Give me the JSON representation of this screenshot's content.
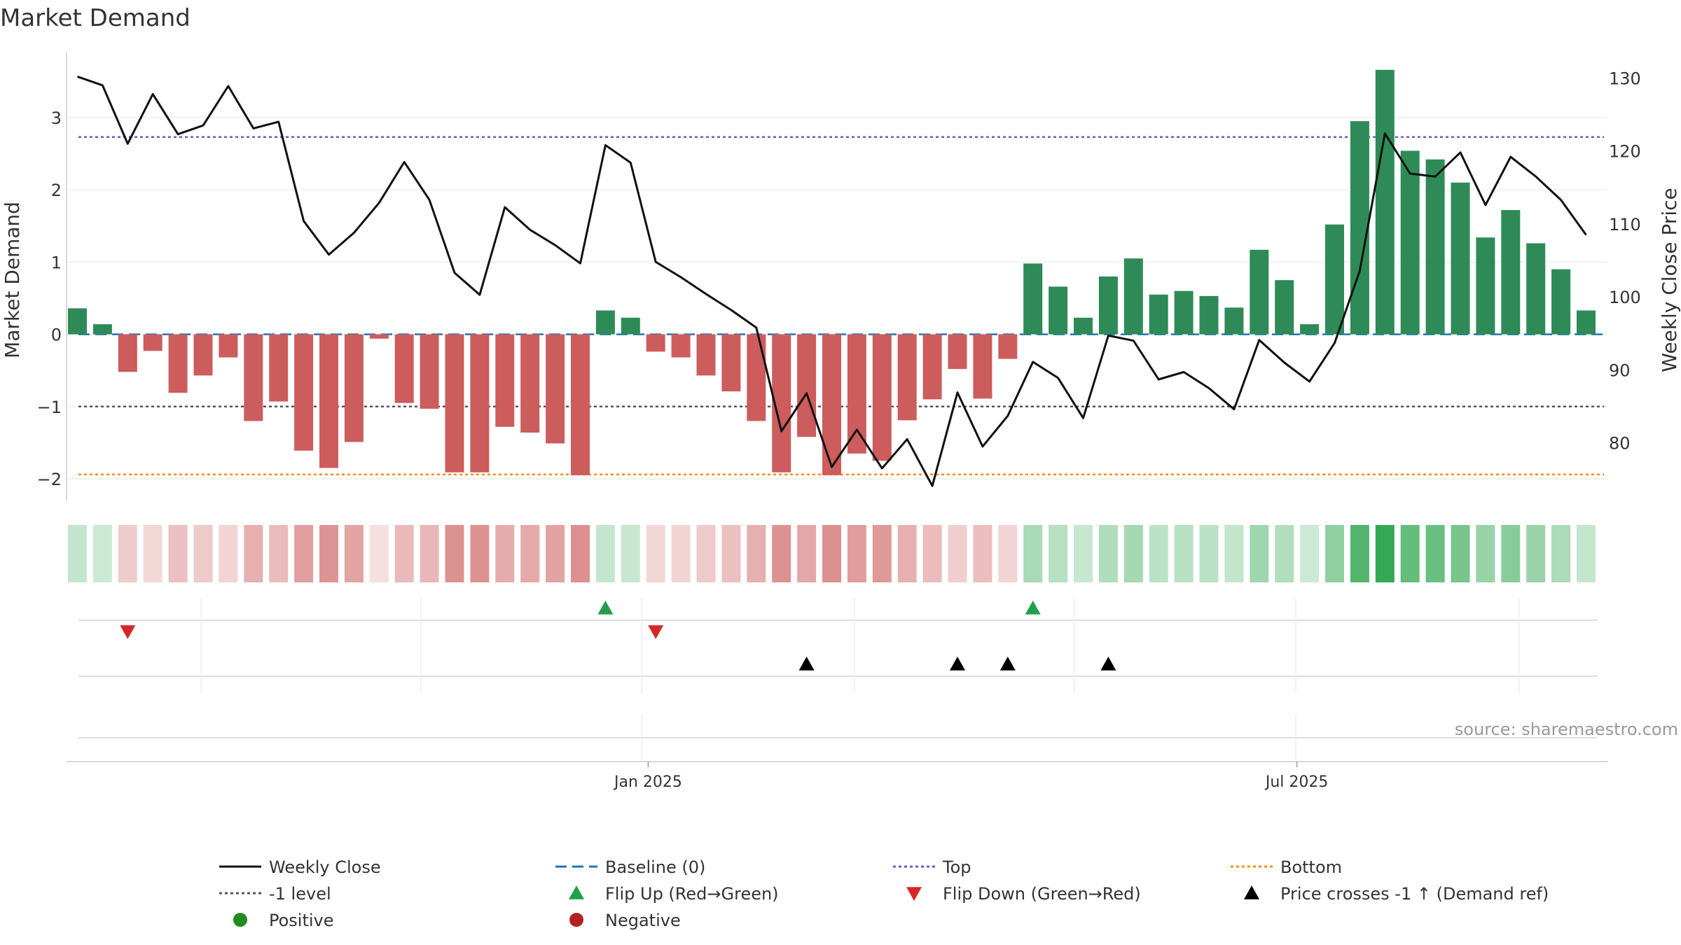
{
  "title": "Market Demand",
  "source": "source: sharemaestro.com",
  "colors": {
    "bar_pos": "#2e8b57",
    "bar_neg": "#cd5c5c",
    "price": "#111111",
    "baseline": "#1f77b4",
    "top": "#6a5acd",
    "minus1": "#555555",
    "bottom": "#ff8c00",
    "flip_up": "#22a049",
    "flip_down": "#d62728",
    "cross": "#000000",
    "positive": "#228b22",
    "negative": "#b22222"
  },
  "legend": [
    {
      "label": "Weekly Close",
      "kind": "line",
      "color": "#111111"
    },
    {
      "label": "Baseline (0)",
      "kind": "dash",
      "color": "#1f77b4"
    },
    {
      "label": "Top",
      "kind": "dot",
      "color": "#6a5acd"
    },
    {
      "label": "Bottom",
      "kind": "dot",
      "color": "#ff8c00"
    },
    {
      "label": "-1 level",
      "kind": "dot",
      "color": "#555555"
    },
    {
      "label": "Flip Up (Red→Green)",
      "kind": "tri-up",
      "color": "#22a049"
    },
    {
      "label": "Flip Down (Green→Red)",
      "kind": "tri-down",
      "color": "#d62728"
    },
    {
      "label": "Price crosses -1 ↑ (Demand ref)",
      "kind": "tri-up",
      "color": "#000000"
    },
    {
      "label": "Positive",
      "kind": "circle",
      "color": "#228b22"
    },
    {
      "label": "Negative",
      "kind": "circle",
      "color": "#b22222"
    }
  ],
  "chart_data": {
    "type": "bar",
    "title": "Market Demand",
    "ylabel": "Market Demand",
    "y2label": "Weekly Close Price",
    "ylim": [
      -2.3,
      3.9
    ],
    "y2lim": [
      72.1,
      133.5
    ],
    "yticks": [
      -2,
      -1,
      0,
      1,
      2,
      3
    ],
    "ytick_labels": [
      "−2",
      "−1",
      "0",
      "1",
      "2",
      "3"
    ],
    "y2ticks": [
      80,
      90,
      100,
      110,
      120,
      130
    ],
    "xticks": [
      {
        "index": 22.7,
        "label": "Jan 2025"
      },
      {
        "index": 48.5,
        "label": "Jul 2025"
      }
    ],
    "levels": {
      "baseline": 0,
      "top": 2.73,
      "minus1": -1,
      "bottom": -1.94
    },
    "demand": [
      0.36,
      0.14,
      -0.52,
      -0.23,
      -0.81,
      -0.57,
      -0.32,
      -1.2,
      -0.93,
      -1.61,
      -1.85,
      -1.49,
      -0.06,
      -0.95,
      -1.03,
      -1.91,
      -1.91,
      -1.28,
      -1.36,
      -1.51,
      -1.95,
      0.33,
      0.23,
      -0.24,
      -0.32,
      -0.57,
      -0.79,
      -1.2,
      -1.91,
      -1.42,
      -1.95,
      -1.65,
      -1.75,
      -1.19,
      -0.9,
      -0.48,
      -0.89,
      -0.34,
      0.98,
      0.66,
      0.23,
      0.8,
      1.05,
      0.55,
      0.6,
      0.53,
      0.37,
      1.17,
      0.75,
      0.14,
      1.52,
      2.95,
      3.66,
      2.54,
      2.42,
      2.1,
      1.34,
      1.72,
      1.26,
      0.9,
      0.33
    ],
    "price": [
      130.2,
      129,
      121,
      127.8,
      122.3,
      123.5,
      128.9,
      123.1,
      124,
      110.4,
      105.8,
      108.8,
      112.9,
      118.5,
      113.3,
      103.3,
      100.3,
      112.3,
      109.2,
      107.1,
      104.6,
      120.8,
      118.4,
      104.8,
      102.7,
      100.4,
      98.2,
      95.8,
      81.6,
      86.8,
      76.7,
      81.8,
      76.5,
      80.5,
      74.1,
      86.9,
      79.5,
      83.7,
      91.1,
      88.9,
      83.4,
      94.7,
      94,
      88.7,
      89.7,
      87.5,
      84.6,
      94.1,
      91,
      88.4,
      93.7,
      103.6,
      122.4,
      116.9,
      116.5,
      119.8,
      112.6,
      119.2,
      116.5,
      113.3,
      108.5
    ],
    "flip_up": [
      21,
      38
    ],
    "flip_down": [
      2,
      23
    ],
    "price_cross_up": [
      29,
      35,
      37,
      41
    ]
  }
}
